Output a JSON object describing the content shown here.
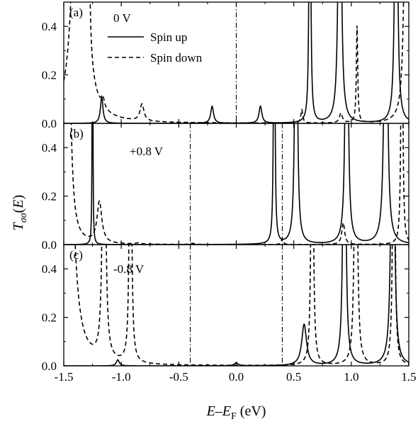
{
  "chart_data": {
    "type": "line",
    "ylabel": "T",
    "ylabel_sub": "σσ",
    "ylabel_arg": "(E)",
    "xlabel": "E",
    "xlabel_sub": "F",
    "xlabel_unit": "(eV)",
    "xlabel_op": "–",
    "xlim": [
      -1.5,
      1.5
    ],
    "ylim": [
      0,
      0.5
    ],
    "xticks": [
      -1.5,
      -1.0,
      -0.5,
      0.0,
      0.5,
      1.0,
      1.5
    ],
    "xtick_labels": [
      "-1.5",
      "-1.0",
      "-0.5",
      "0.0",
      "0.5",
      "1.0",
      "1.5"
    ],
    "yticks": [
      0.0,
      0.2,
      0.4
    ],
    "ytick_labels": [
      "0.0",
      "0.2",
      "0.4"
    ],
    "legend": {
      "placement": "upper-center (panel a)",
      "entries": [
        {
          "label": "Spin up",
          "style": "solid"
        },
        {
          "label": "Spin down",
          "style": "dashed"
        }
      ]
    },
    "panels": [
      {
        "label": "(a)",
        "voltage": "0 V",
        "vlines": [
          0.0
        ],
        "series": [
          {
            "style": "solid",
            "peaks": [
              [
                -1.17,
                0.11,
                0.013
              ],
              [
                -0.21,
                0.07,
                0.015
              ],
              [
                0.21,
                0.07,
                0.015
              ],
              [
                0.64,
                2.0,
                0.006
              ],
              [
                0.9,
                2.0,
                0.011
              ],
              [
                1.39,
                2.0,
                0.01
              ]
            ]
          },
          {
            "style": "dashed",
            "peaks": [
              [
                -1.37,
                2.0,
                0.04
              ],
              [
                -1.29,
                2.0,
                0.007
              ],
              [
                -1.16,
                0.04,
                0.015
              ],
              [
                -0.82,
                0.07,
                0.02
              ],
              [
                0.57,
                0.055,
                0.01
              ],
              [
                0.91,
                0.04,
                0.015
              ],
              [
                1.05,
                0.4,
                0.007
              ],
              [
                1.48,
                2.0,
                0.015
              ]
            ]
          }
        ]
      },
      {
        "label": "(b)",
        "voltage": "+0.8 V",
        "vlines": [
          -0.4,
          0.4
        ],
        "series": [
          {
            "style": "solid",
            "peaks": [
              [
                -1.25,
                2.0,
                0.0025
              ],
              [
                0.33,
                2.0,
                0.005
              ],
              [
                0.52,
                2.0,
                0.009
              ],
              [
                0.96,
                2.0,
                0.01
              ],
              [
                1.3,
                2.0,
                0.012
              ]
            ]
          },
          {
            "style": "dashed",
            "peaks": [
              [
                -1.47,
                2.0,
                0.02
              ],
              [
                -1.19,
                0.17,
                0.025
              ],
              [
                -0.85,
                0.005,
                0.02
              ],
              [
                -0.38,
                0.005,
                0.02
              ],
              [
                0.4,
                0.025,
                0.01
              ],
              [
                0.93,
                0.09,
                0.015
              ],
              [
                1.44,
                2.0,
                0.006
              ]
            ]
          }
        ]
      },
      {
        "label": "(c)",
        "voltage": "-0.8 V",
        "vlines": [
          -0.4,
          0.4
        ],
        "series": [
          {
            "style": "solid",
            "peaks": [
              [
                -1.03,
                0.025,
                0.015
              ],
              [
                0.0,
                0.012,
                0.02
              ],
              [
                0.59,
                0.17,
                0.025
              ],
              [
                0.94,
                2.0,
                0.01
              ],
              [
                1.36,
                2.0,
                0.012
              ]
            ]
          },
          {
            "style": "dashed",
            "peaks": [
              [
                -1.47,
                2.0,
                0.04
              ],
              [
                -1.15,
                2.0,
                0.011
              ],
              [
                -0.92,
                2.0,
                0.008
              ],
              [
                0.66,
                2.0,
                0.008
              ],
              [
                1.04,
                2.0,
                0.01
              ],
              [
                1.37,
                2.0,
                0.008
              ]
            ]
          }
        ]
      }
    ]
  }
}
